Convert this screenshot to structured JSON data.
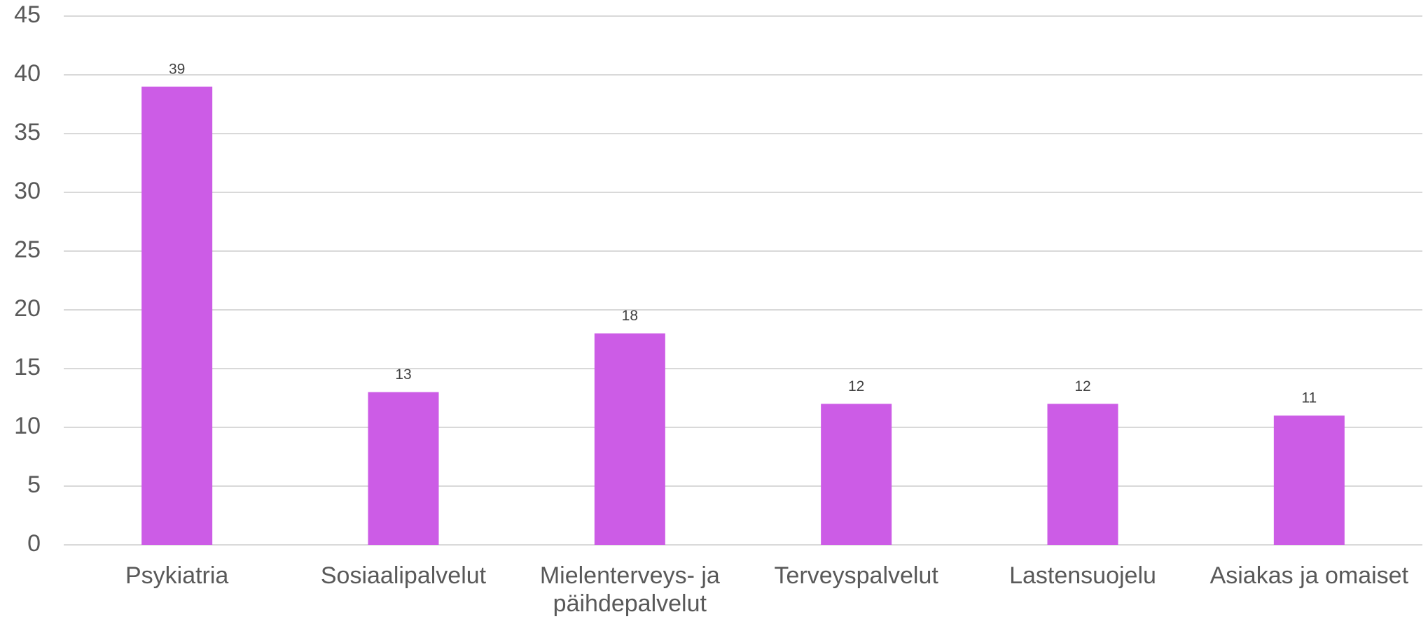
{
  "chart_data": {
    "type": "bar",
    "categories": [
      "Psykiatria",
      "Sosiaalipalvelut",
      "Mielenterveys- ja päihdepalvelut",
      "Terveyspalvelut",
      "Lastensuojelu",
      "Asiakas ja omaiset"
    ],
    "values": [
      39,
      13,
      18,
      12,
      12,
      11
    ],
    "color": "#cc5ce6",
    "ylim": [
      0,
      45
    ],
    "yticks": [
      0,
      5,
      10,
      15,
      20,
      25,
      30,
      35,
      40,
      45
    ],
    "grid": true
  }
}
